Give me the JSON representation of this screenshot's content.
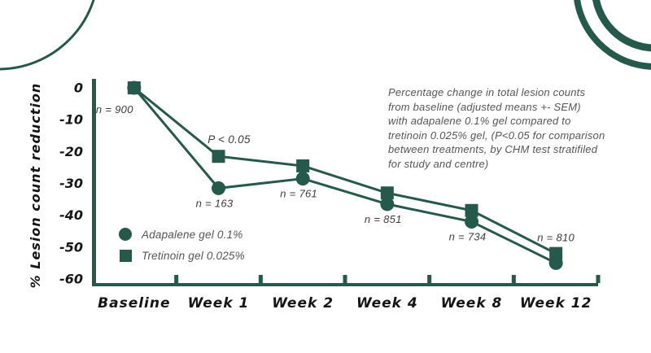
{
  "chart_data": {
    "type": "line",
    "ylabel": "% Lesion count reduction",
    "xlabel": "",
    "categories": [
      "Baseline",
      "Week 1",
      "Week 2",
      "Week 4",
      "Week 8",
      "Week 12"
    ],
    "y_ticks": [
      0,
      -10,
      -20,
      -30,
      -40,
      -50,
      -60
    ],
    "ylim": [
      -60,
      0
    ],
    "grid": false,
    "legend_position": "lower-left",
    "series": [
      {
        "name": "Adapalene gel 0.1%",
        "marker": "circle",
        "values": [
          0,
          -31.5,
          -28.5,
          -36.5,
          -42,
          -55
        ]
      },
      {
        "name": "Tretinoin gel 0.025%",
        "marker": "square",
        "values": [
          0,
          -21.5,
          -24.5,
          -33,
          -38.5,
          -52
        ]
      }
    ],
    "point_labels": [
      {
        "text": "n = 900",
        "week_index": 0,
        "side": "below-left"
      },
      {
        "text": "n = 163",
        "week_index": 1,
        "side": "below"
      },
      {
        "text": "n = 761",
        "week_index": 2,
        "side": "below"
      },
      {
        "text": "n = 851",
        "week_index": 3,
        "side": "below"
      },
      {
        "text": "n = 734",
        "week_index": 4,
        "side": "below"
      },
      {
        "text": "n = 810",
        "week_index": 5,
        "side": "above"
      }
    ],
    "significance_label": {
      "text": "P < 0.05",
      "week_index": 1,
      "side": "above"
    },
    "annotation": "Percentage change in total lesion counts\nfrom baseline (adjusted means +- SEM)\nwith adapalene 0.1% gel compared to\ntretinoin 0.025% gel, (P<0.05 for comparison\nbetween treatments, by CHM test stratifiled\nfor study and centre)",
    "legend": [
      {
        "label": "Adapalene gel 0.1%",
        "marker": "circle"
      },
      {
        "label": "Tretinoin gel 0.025%",
        "marker": "square"
      }
    ],
    "colors": {
      "series": "#25594b",
      "decor": "#25594b",
      "text_dark": "#151515",
      "text_gray": "#555555",
      "n_label": "#3c3c3c"
    }
  }
}
